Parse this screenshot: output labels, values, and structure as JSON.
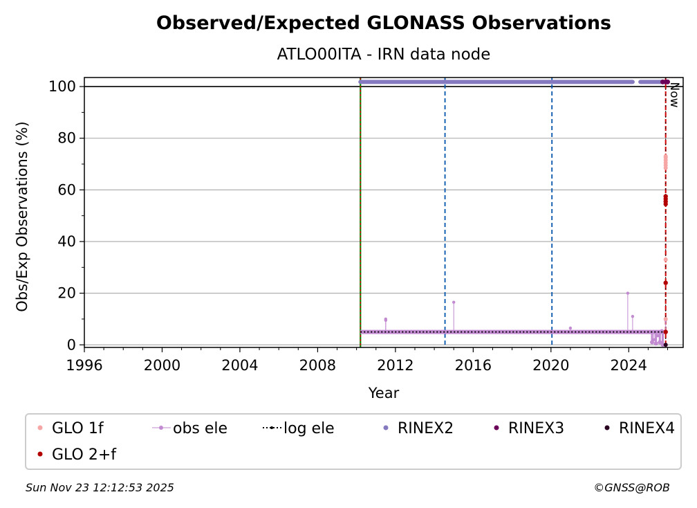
{
  "colors": {
    "glo1f": "#f7a6a6",
    "glo2f": "#b30000",
    "obs_ele": "#c28ad1",
    "log_ele": "#000000",
    "rinex2": "#8579bf",
    "rinex3": "#6b0059",
    "rinex4": "#2a0020",
    "start_line": "#008800",
    "vline": "#0055aa",
    "now_line": "#cc0000"
  },
  "chart_data": {
    "type": "scatter",
    "title": "Observed/Expected GLONASS Observations",
    "subtitle": "ATLO00ITA - IRN data node",
    "xlabel": "Year",
    "ylabel": "Obs/Exp Observations (%)",
    "xlim": [
      1996,
      2026.8
    ],
    "ylim": [
      -1,
      103.5
    ],
    "xticks": [
      "1996",
      "2000",
      "2004",
      "2008",
      "2012",
      "2016",
      "2020",
      "2024"
    ],
    "yticks": [
      "0",
      "20",
      "40",
      "60",
      "80",
      "100"
    ],
    "grid": "horizontal",
    "hline": 100,
    "start_line_x": 2010.2,
    "vlines_x": [
      2014.55,
      2020.05
    ],
    "now_x": 2025.9,
    "now_label": "Now",
    "series": [
      {
        "name": "GLO 1f",
        "points": [
          [
            2025.9,
            68.5
          ],
          [
            2025.9,
            69.5
          ],
          [
            2025.9,
            70.5
          ],
          [
            2025.9,
            71.5
          ],
          [
            2025.9,
            72.5
          ],
          [
            2025.9,
            73.0
          ],
          [
            2025.9,
            33.0
          ],
          [
            2025.9,
            10.0
          ],
          [
            2025.9,
            5.0
          ]
        ]
      },
      {
        "name": "obs ele",
        "baseline": 5,
        "x_range": [
          2010.2,
          2025.9
        ],
        "spikes": [
          [
            2011.5,
            9.5
          ],
          [
            2011.5,
            10.0
          ],
          [
            2015.0,
            16.5
          ],
          [
            2021.0,
            6.5
          ],
          [
            2023.95,
            20.0
          ],
          [
            2024.2,
            11.0
          ],
          [
            2025.3,
            2.0
          ],
          [
            2025.5,
            3.5
          ],
          [
            2025.7,
            5.5
          ],
          [
            2025.9,
            9.5
          ]
        ],
        "dips": [
          [
            2025.2,
            1.0
          ],
          [
            2025.4,
            0.5
          ],
          [
            2025.6,
            1.0
          ],
          [
            2025.75,
            0.0
          ]
        ]
      },
      {
        "name": "log ele",
        "value": 5,
        "x_range": [
          2010.2,
          2025.9
        ]
      },
      {
        "name": "RINEX2",
        "value": 101.8,
        "segments": [
          [
            2010.2,
            2024.2
          ],
          [
            2024.6,
            2025.7
          ]
        ]
      },
      {
        "name": "RINEX3",
        "points": [
          [
            2025.75,
            101.8
          ],
          [
            2025.9,
            101.8
          ],
          [
            2026.0,
            101.8
          ]
        ]
      },
      {
        "name": "RINEX4",
        "points": [
          [
            2025.9,
            0.0
          ]
        ]
      },
      {
        "name": "GLO 2+f",
        "points": [
          [
            2025.9,
            54.5
          ],
          [
            2025.9,
            55.5
          ],
          [
            2025.9,
            56.5
          ],
          [
            2025.9,
            57.5
          ],
          [
            2025.9,
            24.0
          ],
          [
            2025.9,
            5.0
          ]
        ]
      }
    ],
    "legend": {
      "placement": "bottom",
      "entries": [
        {
          "name": "GLO 1f",
          "marker": "dot",
          "color": "#f7a6a6"
        },
        {
          "name": "obs ele",
          "marker": "stem",
          "color": "#c28ad1"
        },
        {
          "name": "log ele",
          "marker": "dotted",
          "color": "#000000"
        },
        {
          "name": "RINEX2",
          "marker": "dot",
          "color": "#8579bf"
        },
        {
          "name": "RINEX3",
          "marker": "dot",
          "color": "#6b0059"
        },
        {
          "name": "RINEX4",
          "marker": "dot",
          "color": "#2a0020"
        },
        {
          "name": "GLO 2+f",
          "marker": "dot",
          "color": "#b30000"
        }
      ]
    }
  },
  "footer": {
    "timestamp": "Sun Nov 23 12:12:53 2025",
    "credit": "©GNSS@ROB"
  }
}
